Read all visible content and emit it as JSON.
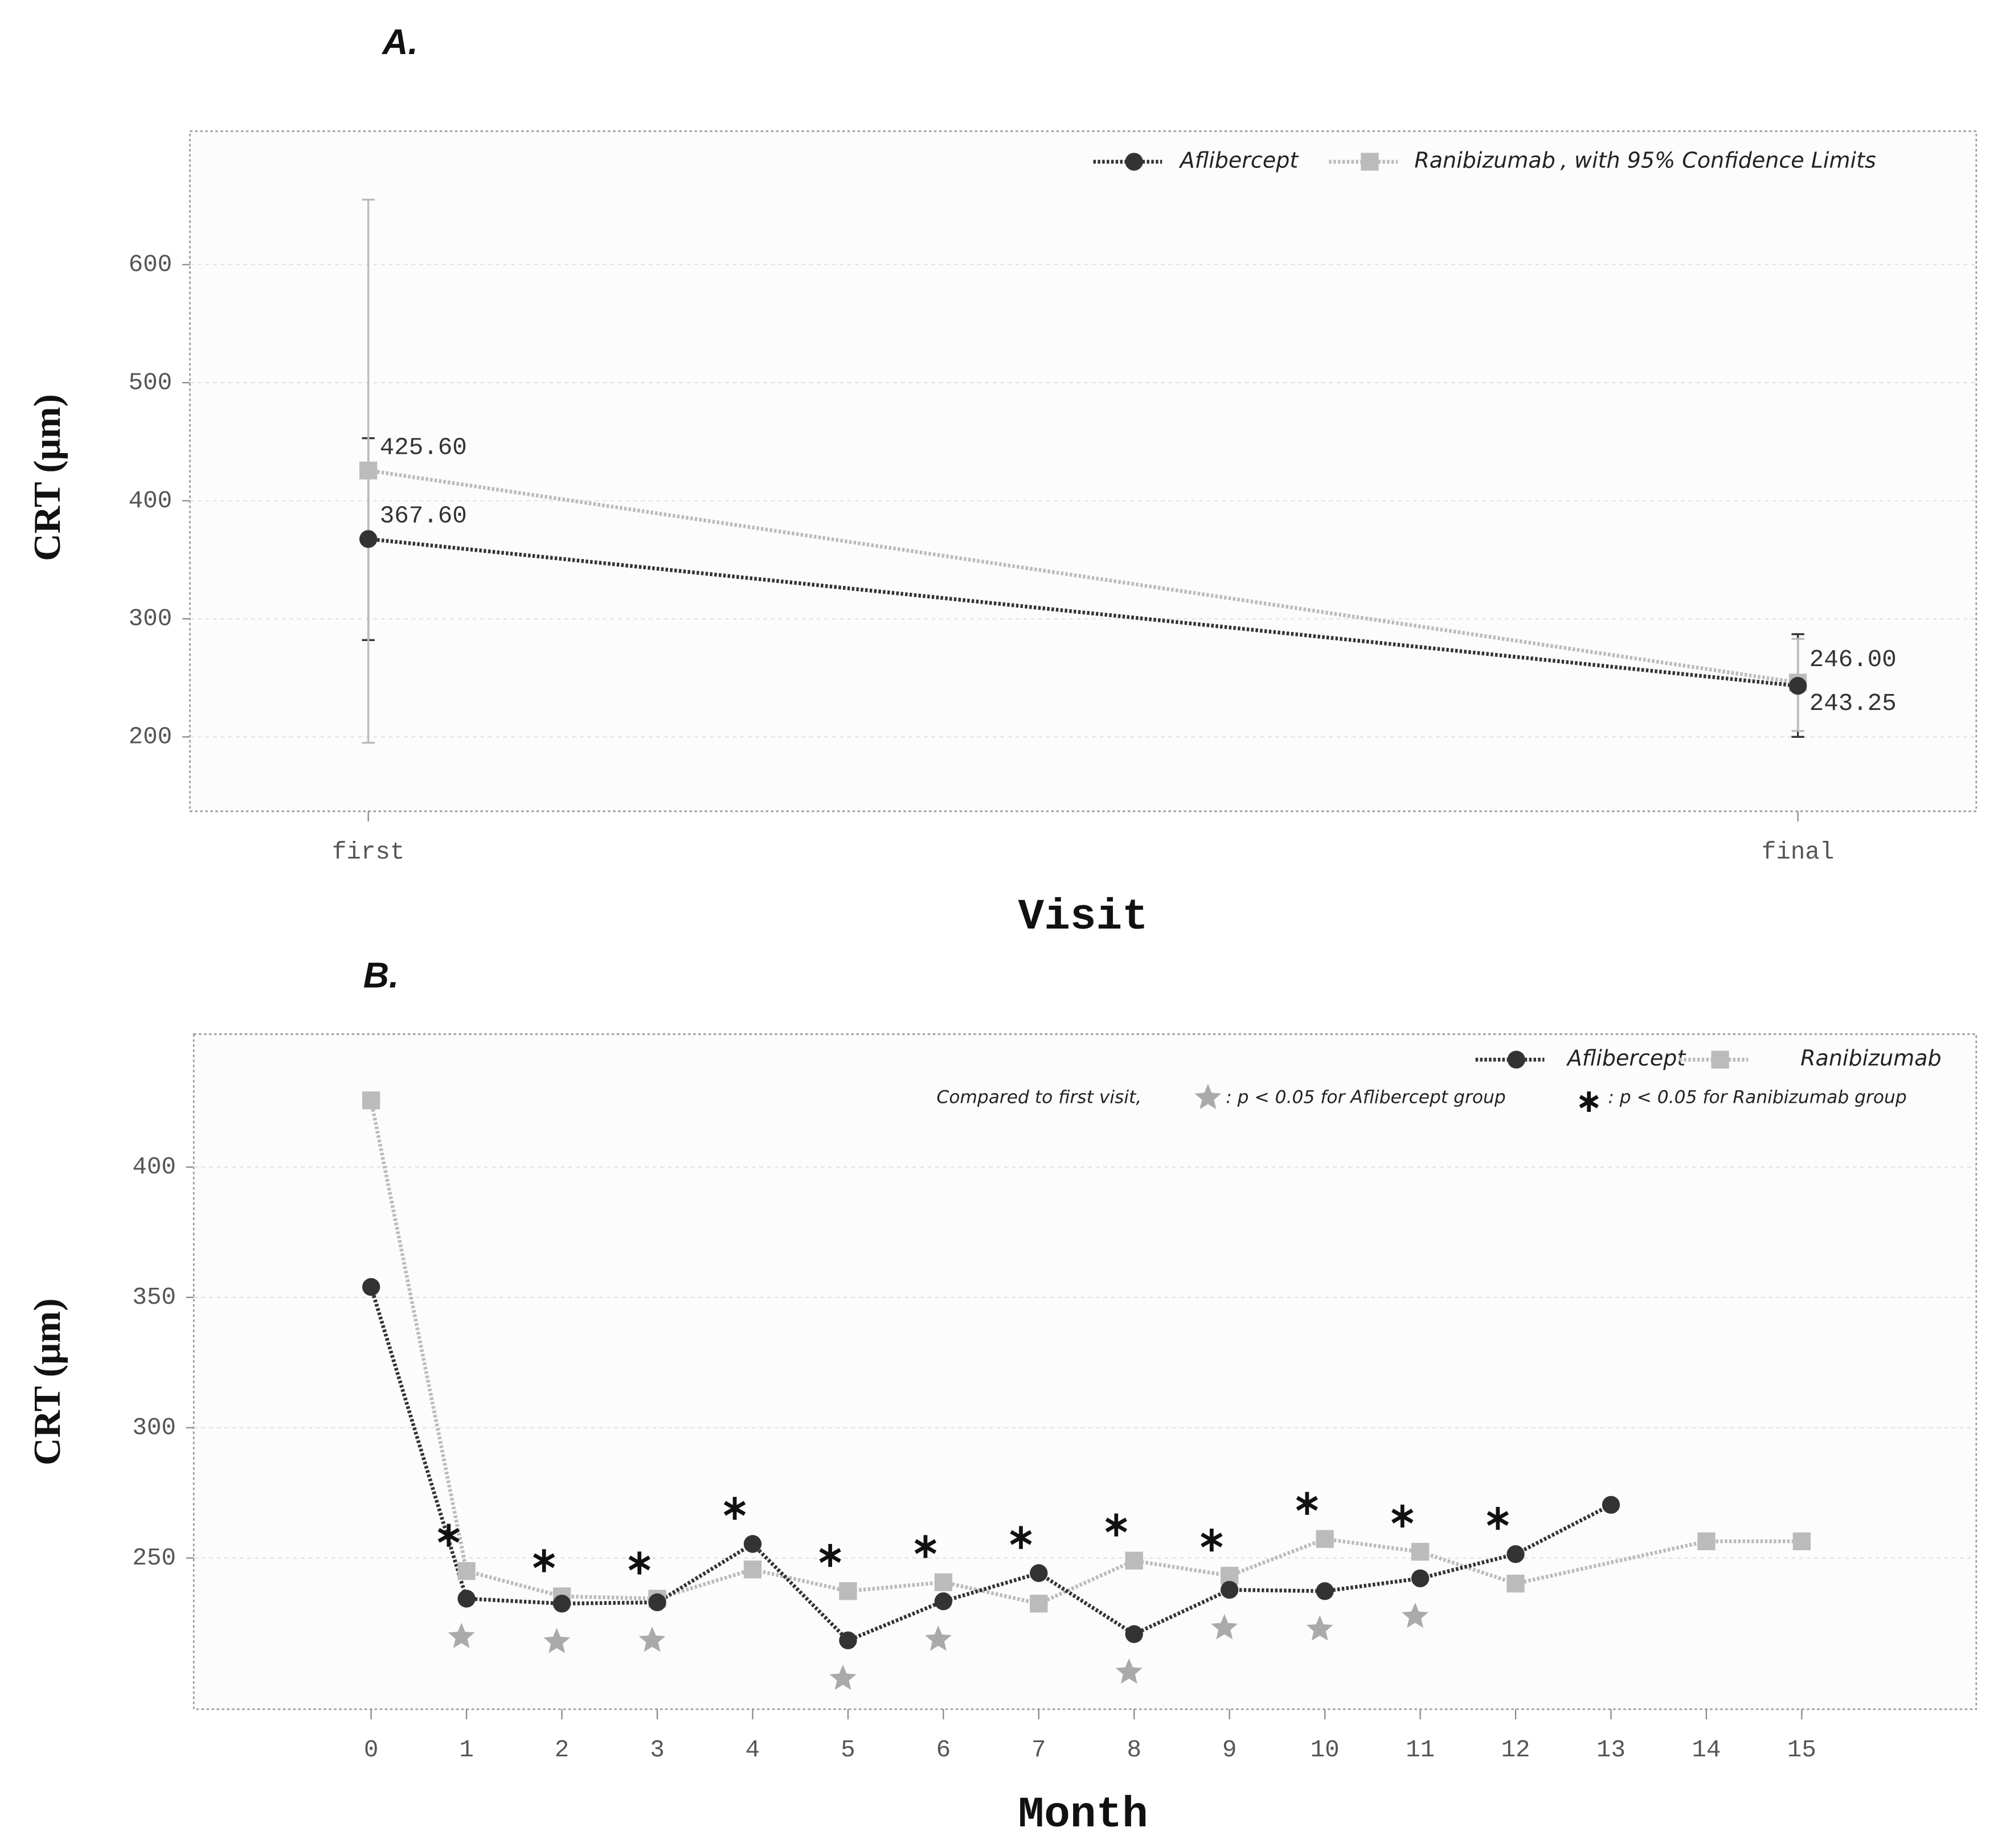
{
  "chart_data": [
    {
      "type": "line",
      "panel_label": "A.",
      "categories": [
        "first",
        "final"
      ],
      "x_label": "Visit",
      "y_label": "CRT (μm)",
      "ylim": [
        137,
        713
      ],
      "yticks": [
        200,
        300,
        400,
        500,
        600
      ],
      "grid": true,
      "legend_position": "top-right",
      "legend_note": ", with 95% Confidence Limits",
      "series": [
        {
          "name": "Aflibercept",
          "color": "#333333",
          "marker": "circle",
          "values": [
            367.6,
            243.25
          ],
          "value_labels": [
            "367.60",
            "243.25"
          ],
          "ci_lower": [
            282,
            200
          ],
          "ci_upper": [
            453,
            287
          ]
        },
        {
          "name": "Ranibizumab",
          "color": "#bbbbbb",
          "marker": "square",
          "values": [
            425.6,
            246.0
          ],
          "value_labels": [
            "425.60",
            "246.00"
          ],
          "ci_lower": [
            195,
            205
          ],
          "ci_upper": [
            655,
            283
          ]
        }
      ]
    },
    {
      "type": "line",
      "panel_label": "B.",
      "x_label": "Month",
      "y_label": "CRT (μm)",
      "xlim": [
        -1.86,
        16.83
      ],
      "xticks": [
        0,
        1,
        2,
        3,
        4,
        5,
        6,
        7,
        8,
        9,
        10,
        11,
        12,
        13,
        14,
        15
      ],
      "ylim": [
        192,
        451
      ],
      "yticks": [
        250,
        300,
        350,
        400
      ],
      "grid": true,
      "legend_position": "top-right",
      "legend_note": "Compared to first visit,",
      "series": [
        {
          "name": "Aflibercept",
          "color": "#333333",
          "marker": "circle",
          "x": [
            0,
            1,
            2,
            3,
            4,
            5,
            6,
            7,
            8,
            9,
            10,
            11,
            12,
            13
          ],
          "values": [
            354,
            234.4,
            232.5,
            233,
            255.4,
            218.4,
            233.4,
            244.2,
            220.8,
            237.8,
            237.3,
            242.2,
            251.5,
            270.4
          ]
        },
        {
          "name": "Ranibizumab",
          "color": "#bbbbbb",
          "marker": "square",
          "x": [
            0,
            1,
            2,
            3,
            4,
            5,
            6,
            7,
            8,
            9,
            10,
            11,
            12,
            14,
            15
          ],
          "values": [
            425.6,
            245,
            235.3,
            234.4,
            245.6,
            237.3,
            240.7,
            232.5,
            249,
            243.2,
            257.3,
            252.4,
            240.2,
            256.4,
            256.4
          ]
        }
      ],
      "significance": [
        {
          "marker": "star",
          "color": "#aaaaaa",
          "label": ": p < 0.05 for Aflibercept group",
          "months": [
            1,
            2,
            3,
            5,
            6,
            8,
            9,
            10,
            11
          ]
        },
        {
          "marker": "asterisk",
          "color": "#111111",
          "label": ": p < 0.05 for Ranibizumab group",
          "months": [
            1,
            2,
            3,
            4,
            5,
            6,
            7,
            8,
            9,
            10,
            11,
            12
          ]
        }
      ]
    }
  ]
}
